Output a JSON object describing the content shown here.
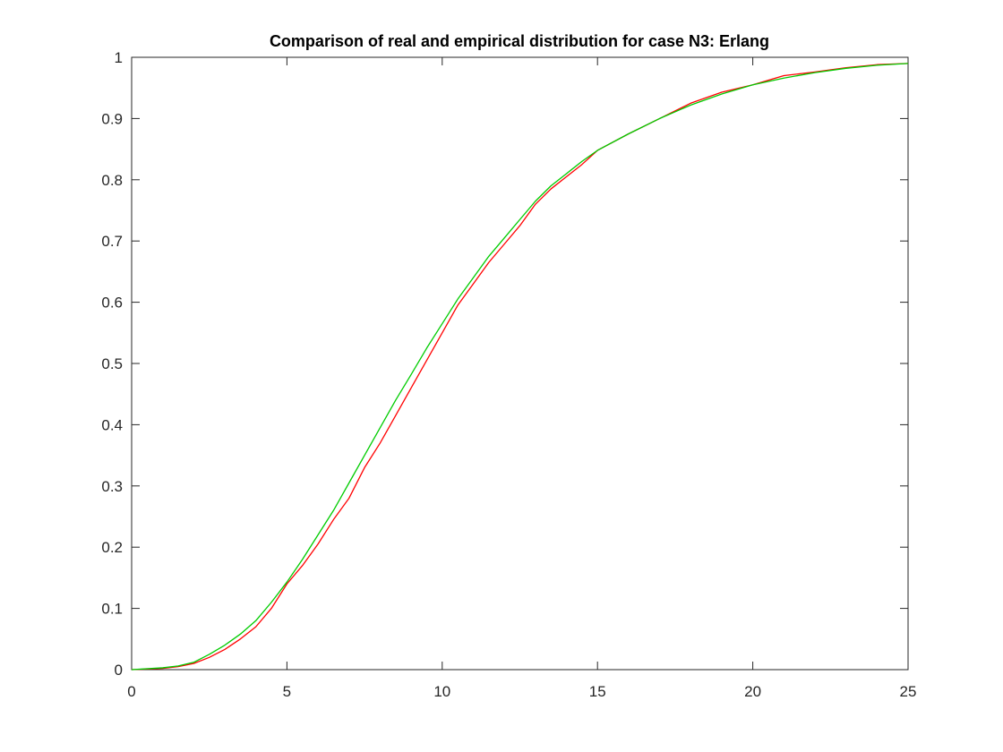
{
  "chart_data": {
    "type": "line",
    "title": "Comparison of real and empirical distribution for case N3: Erlang",
    "xlabel": "",
    "ylabel": "",
    "xlim": [
      0,
      25
    ],
    "ylim": [
      0,
      1
    ],
    "xticks": [
      0,
      5,
      10,
      15,
      20,
      25
    ],
    "yticks": [
      0,
      0.1,
      0.2,
      0.3,
      0.4,
      0.5,
      0.6,
      0.7,
      0.8,
      0.9,
      1
    ],
    "xtick_labels": [
      "0",
      "5",
      "10",
      "15",
      "20",
      "25"
    ],
    "ytick_labels": [
      "0",
      "0.1",
      "0.2",
      "0.3",
      "0.4",
      "0.5",
      "0.6",
      "0.7",
      "0.8",
      "0.9",
      "1"
    ],
    "grid": false,
    "legend": "none",
    "series": [
      {
        "color": "#ff0000",
        "x": [
          0,
          1,
          1.5,
          2,
          2.5,
          3,
          3.5,
          4,
          4.5,
          5,
          5.5,
          6,
          6.5,
          7,
          7.5,
          8,
          8.5,
          9,
          9.5,
          10,
          10.5,
          11,
          11.5,
          12,
          12.5,
          13,
          13.5,
          14,
          14.5,
          15,
          16,
          17,
          18,
          19,
          20,
          21,
          22,
          23,
          24,
          25
        ],
        "y": [
          0,
          0.002,
          0.005,
          0.01,
          0.02,
          0.033,
          0.05,
          0.07,
          0.1,
          0.14,
          0.17,
          0.205,
          0.245,
          0.28,
          0.33,
          0.37,
          0.415,
          0.46,
          0.505,
          0.55,
          0.595,
          0.63,
          0.665,
          0.695,
          0.725,
          0.76,
          0.785,
          0.805,
          0.825,
          0.848,
          0.875,
          0.9,
          0.925,
          0.943,
          0.955,
          0.97,
          0.976,
          0.983,
          0.988,
          0.99
        ]
      },
      {
        "color": "#00cc00",
        "x": [
          0,
          1,
          1.5,
          2,
          2.5,
          3,
          3.5,
          4,
          4.5,
          5,
          5.5,
          6,
          6.5,
          7,
          7.5,
          8,
          8.5,
          9,
          9.5,
          10,
          10.5,
          11,
          11.5,
          12,
          12.5,
          13,
          13.5,
          14,
          14.5,
          15,
          16,
          17,
          18,
          19,
          20,
          21,
          22,
          23,
          24,
          25
        ],
        "y": [
          0,
          0.003,
          0.006,
          0.012,
          0.025,
          0.04,
          0.058,
          0.08,
          0.11,
          0.143,
          0.18,
          0.22,
          0.26,
          0.305,
          0.35,
          0.395,
          0.44,
          0.482,
          0.525,
          0.565,
          0.605,
          0.64,
          0.675,
          0.705,
          0.735,
          0.765,
          0.79,
          0.81,
          0.83,
          0.848,
          0.875,
          0.9,
          0.922,
          0.94,
          0.955,
          0.966,
          0.975,
          0.982,
          0.987,
          0.99
        ]
      }
    ]
  }
}
